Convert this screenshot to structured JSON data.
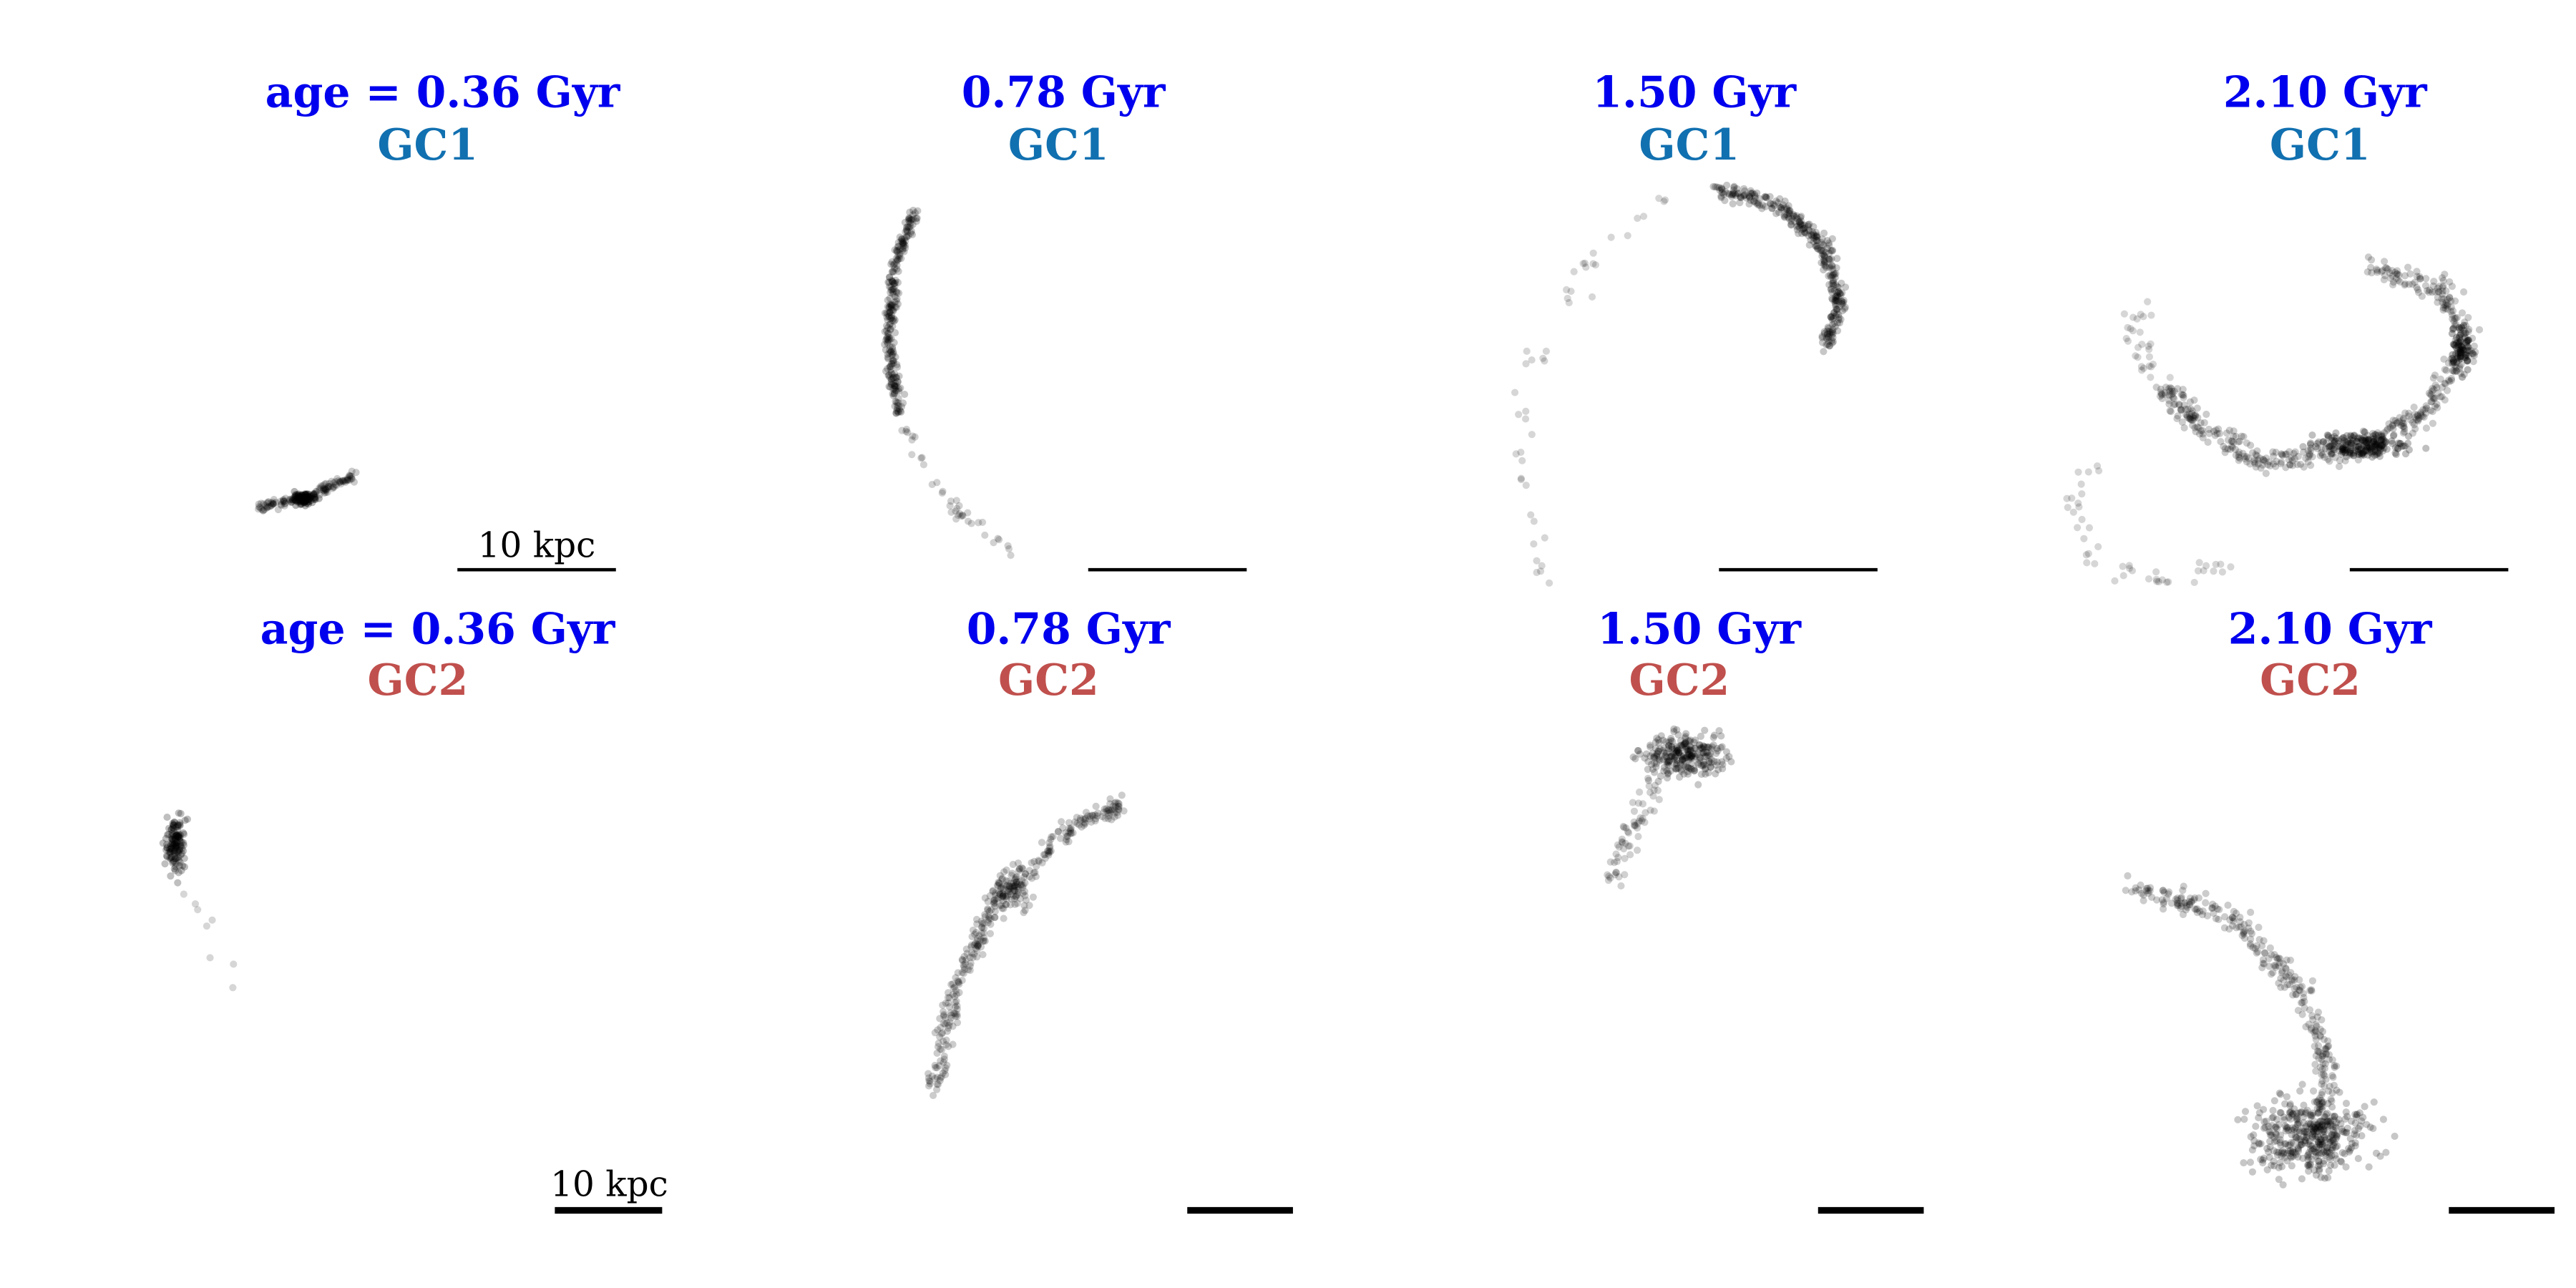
{
  "panels": [
    {
      "title": "age = 0.36 Gyr",
      "label": "GC1",
      "scale_bar_label": "10 kpc"
    },
    {
      "title": "0.78 Gyr",
      "label": "GC1"
    },
    {
      "title": "1.50 Gyr",
      "label": "GC1"
    },
    {
      "title": "2.10 Gyr",
      "label": "GC1"
    },
    {
      "title": "age = 0.36 Gyr",
      "label": "GC2",
      "scale_bar_label": "10 kpc"
    },
    {
      "title": "0.78 Gyr",
      "label": "GC2"
    },
    {
      "title": "1.50 Gyr",
      "label": "GC2"
    },
    {
      "title": "2.10 Gyr",
      "label": "GC2"
    }
  ]
}
